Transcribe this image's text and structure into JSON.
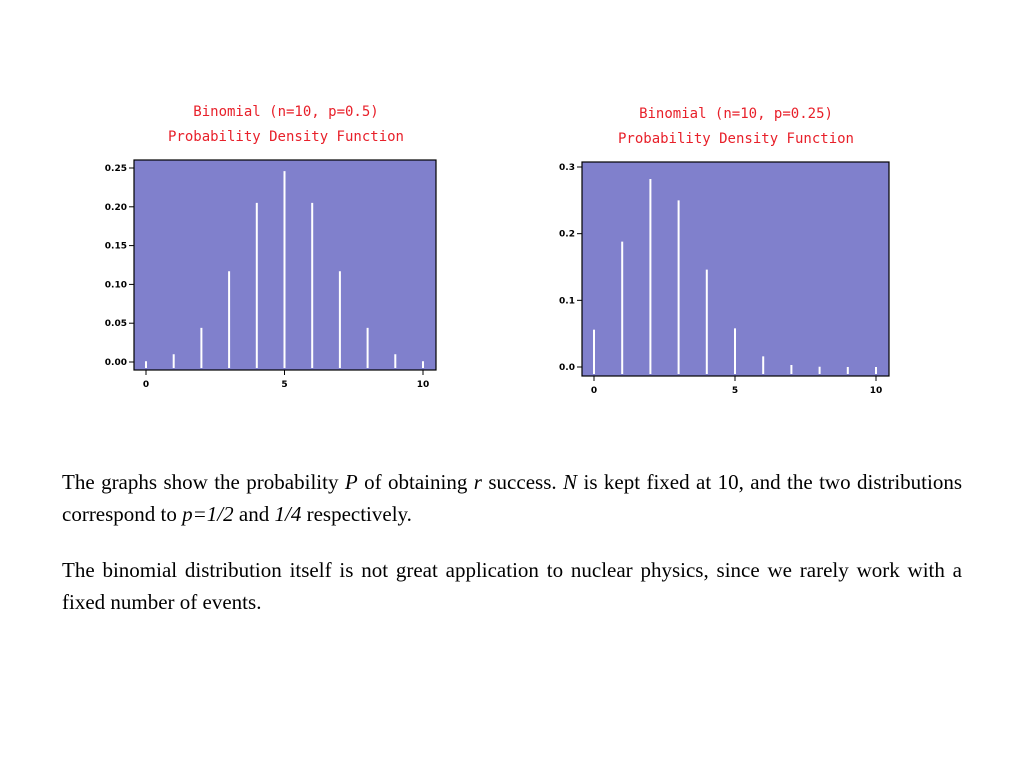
{
  "chart_data": [
    {
      "type": "bar",
      "title": "Binomial (n=10, p=0.5)",
      "subtitle": "Probability Density Function",
      "x": [
        0,
        1,
        2,
        3,
        4,
        5,
        6,
        7,
        8,
        9,
        10
      ],
      "values": [
        0.001,
        0.01,
        0.044,
        0.117,
        0.205,
        0.246,
        0.205,
        0.117,
        0.044,
        0.01,
        0.001
      ],
      "xlim": [
        0,
        10
      ],
      "ylim": [
        0,
        0.25
      ],
      "xticks": [
        "0",
        "5",
        "10"
      ],
      "xtick_values": [
        0,
        5,
        10
      ],
      "yticks": [
        "0.00",
        "0.05",
        "0.10",
        "0.15",
        "0.20",
        "0.25"
      ],
      "ytick_values": [
        0,
        0.05,
        0.1,
        0.15,
        0.2,
        0.25
      ],
      "xlabel": "",
      "ylabel": "",
      "grid": false,
      "plot_color": "#8080cc",
      "bar_color": "#ffffff",
      "title_color": "#e8202a"
    },
    {
      "type": "bar",
      "title": "Binomial (n=10, p=0.25)",
      "subtitle": "Probability Density Function",
      "x": [
        0,
        1,
        2,
        3,
        4,
        5,
        6,
        7,
        8,
        9,
        10
      ],
      "values": [
        0.056,
        0.188,
        0.282,
        0.25,
        0.146,
        0.058,
        0.016,
        0.003,
        0.0004,
        3e-05,
        1e-06
      ],
      "xlim": [
        0,
        10
      ],
      "ylim": [
        0,
        0.3
      ],
      "xticks": [
        "0",
        "5",
        "10"
      ],
      "xtick_values": [
        0,
        5,
        10
      ],
      "yticks": [
        "0.0",
        "0.1",
        "0.2",
        "0.3"
      ],
      "ytick_values": [
        0,
        0.1,
        0.2,
        0.3
      ],
      "xlabel": "",
      "ylabel": "",
      "grid": false,
      "plot_color": "#8080cc",
      "bar_color": "#ffffff",
      "title_color": "#e8202a"
    }
  ],
  "text": {
    "para1": {
      "t1": "The graphs show the probability ",
      "i1": "P",
      "t2": " of obtaining ",
      "i2": "r",
      "t3": " success. ",
      "i3": "N",
      "t4": " is kept fixed at 10, and the two distributions correspond to ",
      "i4": "p=1/2",
      "t5": " and ",
      "i5": "1/4",
      "t6": " respectively."
    },
    "para2": "The binomial distribution itself is not great application to nuclear physics, since we rarely work with a fixed number of events."
  }
}
